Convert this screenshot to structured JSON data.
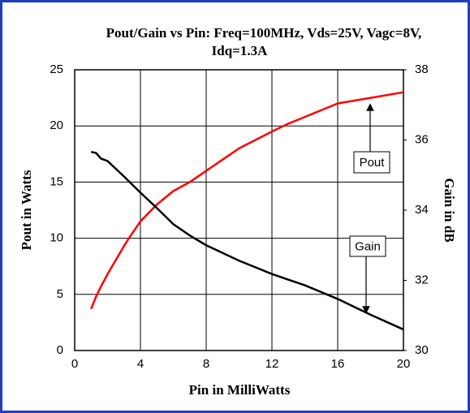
{
  "chart_data": {
    "type": "line",
    "title": [
      "Pout/Gain vs Pin: Freq=100MHz, Vds=25V, Vagc=8V,",
      "Idq=1.3A"
    ],
    "x_label": "Pin in MilliWatts",
    "y_label": "Pout in Watts",
    "y2_label": "Gain in dB",
    "x": [
      1,
      1.3,
      1.6,
      2,
      3,
      3.3,
      4,
      5,
      6,
      7,
      8,
      10,
      12,
      13,
      14,
      16,
      18,
      20
    ],
    "series": [
      {
        "name": "Pout",
        "color": "#ff0000",
        "axis": "y",
        "values": [
          3.7,
          4.8,
          5.7,
          6.8,
          9.3,
          10,
          11.5,
          13,
          14.2,
          15,
          16,
          18,
          19.5,
          20.2,
          20.8,
          22,
          22.5,
          23
        ]
      },
      {
        "name": "Gain",
        "color": "#000000",
        "axis": "y2",
        "values": [
          35.66,
          35.63,
          35.47,
          35.4,
          34.96,
          34.82,
          34.5,
          34.06,
          33.6,
          33.28,
          33.0,
          32.56,
          32.18,
          32.02,
          31.86,
          31.47,
          31.02,
          30.6
        ]
      }
    ],
    "annotations": [
      "Pout",
      "Gain"
    ],
    "xlim": [
      0,
      20
    ],
    "xticks": [
      0,
      4,
      8,
      12,
      16,
      20
    ],
    "ylim": [
      0,
      25
    ],
    "yticks": [
      0,
      5,
      10,
      15,
      20,
      25
    ],
    "y2lim": [
      30,
      38
    ],
    "y2ticks": [
      30,
      32,
      34,
      36,
      38
    ],
    "grid": true
  }
}
